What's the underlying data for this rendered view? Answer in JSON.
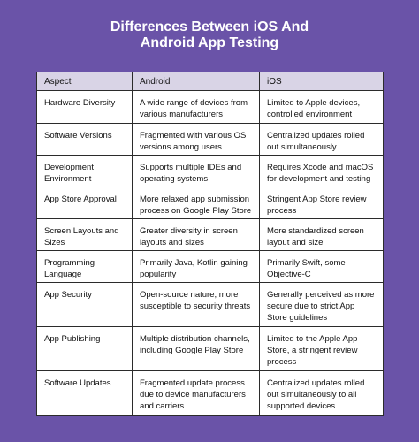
{
  "title": {
    "line1": "Differences Between iOS And",
    "line2": "Android App Testing"
  },
  "table": {
    "headers": [
      "Aspect",
      "Android",
      "iOS"
    ],
    "rows": [
      [
        "Hardware Diversity",
        "A wide range of devices from various manufacturers",
        "Limited to Apple devices, controlled environment"
      ],
      [
        "Software Versions",
        "Fragmented with various OS versions among users",
        "Centralized updates rolled out simultaneously"
      ],
      [
        "Development Environment",
        "Supports multiple IDEs and operating systems",
        "Requires Xcode and macOS for development and testing"
      ],
      [
        "App Store Approval",
        "More relaxed app submission process on Google Play Store",
        "Stringent App Store review process"
      ],
      [
        "Screen Layouts and Sizes",
        "Greater diversity in screen layouts and sizes",
        "More standardized screen layout and size"
      ],
      [
        "Programming Language",
        "Primarily Java, Kotlin gaining popularity",
        "Primarily Swift, some Objective-C"
      ],
      [
        "App Security",
        "Open-source nature, more susceptible to security threats",
        "Generally perceived as more secure due to strict App Store guidelines"
      ],
      [
        "App Publishing",
        "Multiple distribution channels, including Google Play Store",
        "Limited to the Apple App Store, a stringent review process"
      ],
      [
        "Software Updates",
        "Fragmented update process due to device manufacturers and carriers",
        "Centralized updates rolled out simultaneously to all supported devices"
      ]
    ]
  },
  "colors": {
    "background": "#6a53a8",
    "header_row": "#d9d4e6",
    "border": "#2b2b2b"
  }
}
